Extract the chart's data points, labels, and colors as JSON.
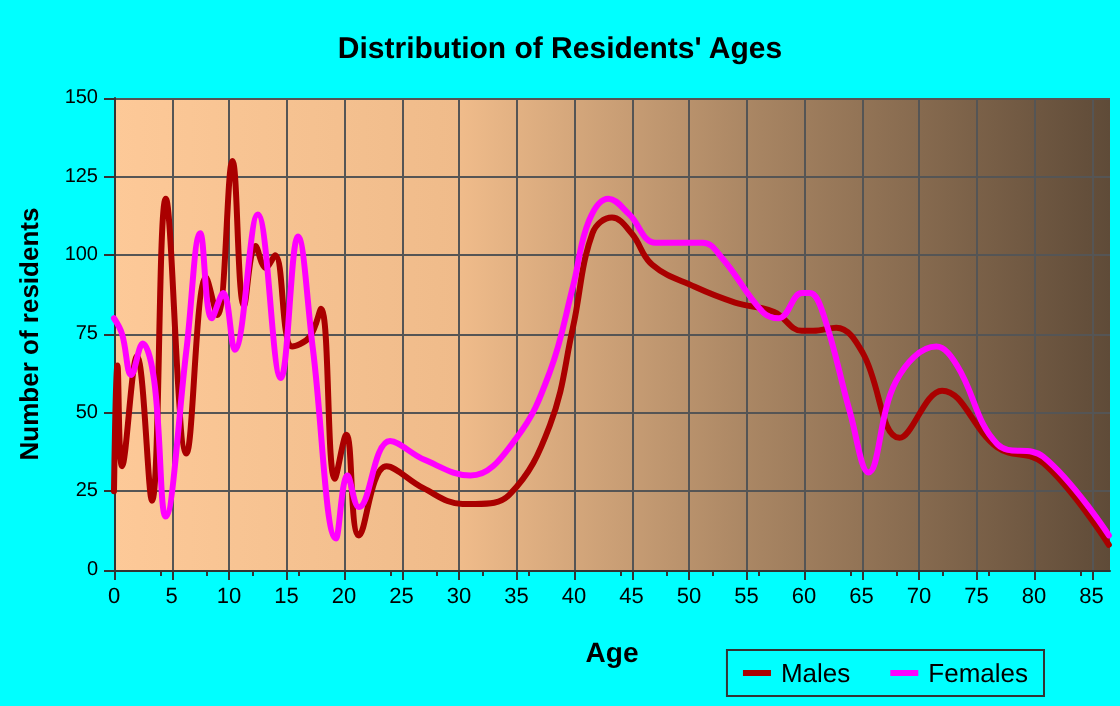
{
  "chart_data": {
    "type": "line",
    "title": "Distribution of Residents' Ages",
    "xlabel": "Age",
    "ylabel": "Number of residents",
    "xlim": [
      0,
      86.6
    ],
    "xticks": [
      0,
      5,
      10,
      15,
      20,
      25,
      30,
      35,
      40,
      45,
      50,
      55,
      60,
      65,
      70,
      75,
      80,
      85
    ],
    "ylim": [
      0,
      150
    ],
    "yticks": [
      0,
      25,
      50,
      75,
      100,
      125,
      150
    ],
    "grid": true,
    "legend": "bottom right",
    "marker": "none",
    "line_style": "solid",
    "series": [
      {
        "name": "Males",
        "color": "#aa0000",
        "x": [
          0,
          0.3,
          0.7,
          2,
          3.3,
          4.5,
          6.3,
          8,
          9,
          10.3,
          11.3,
          12.3,
          13.2,
          14,
          15.5,
          17,
          18,
          19.2,
          20.2,
          21.3,
          23.7,
          26.9,
          30.3,
          31.4,
          34.4,
          37.9,
          39.9,
          41.6,
          43.3,
          45,
          46.8,
          50.5,
          54,
          57.4,
          59.8,
          60.8,
          62.8,
          65.1,
          68.3,
          72,
          76.8,
          80.8,
          86.5
        ],
        "values": [
          25,
          65,
          33,
          68,
          22,
          118,
          37,
          93,
          81,
          130,
          84,
          103,
          96,
          100,
          71,
          74,
          83,
          29,
          43,
          11,
          33,
          26,
          21,
          21,
          24,
          46,
          77,
          107,
          112,
          107,
          97,
          90,
          85,
          82,
          76,
          76,
          77,
          69,
          42,
          57,
          39,
          34,
          8
        ]
      },
      {
        "name": "Females",
        "color": "#ff00ff",
        "x": [
          0,
          0.7,
          1.5,
          2.5,
          3.5,
          4.5,
          6.3,
          7.5,
          8.5,
          9.5,
          10.5,
          12.5,
          14.5,
          16,
          17.3,
          19.3,
          20.3,
          21.3,
          24,
          27,
          31,
          35,
          37.9,
          39.9,
          41.3,
          43,
          44.8,
          47.1,
          51.2,
          52.9,
          56.4,
          57.8,
          59.8,
          60.5,
          61.7,
          64,
          65.6,
          68,
          71.5,
          73.3,
          76.8,
          80.8,
          86.5
        ],
        "values": [
          80,
          75,
          62,
          72,
          60,
          17,
          70,
          107,
          80,
          88,
          70,
          113,
          61,
          106,
          70,
          10,
          30,
          20,
          41,
          35,
          30,
          42,
          63,
          90,
          111,
          118,
          113,
          104,
          104,
          99,
          82,
          80,
          88,
          88,
          81,
          50,
          31,
          60,
          71,
          65,
          40,
          36,
          11
        ]
      }
    ]
  }
}
